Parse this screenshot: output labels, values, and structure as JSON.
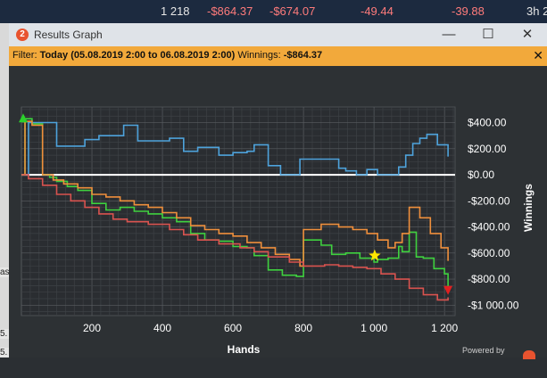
{
  "topbar": {
    "hands": "1 218",
    "winnings": "-$864.37",
    "allin_adj": "-$674.07",
    "bb100": "-49.44",
    "other": "-39.88",
    "time": "3h 2"
  },
  "left_fragments": [
    "as",
    "5.",
    "5."
  ],
  "window": {
    "title": "Results Graph",
    "icon_label": "2",
    "minimize_label": "—",
    "maximize_label": "☐",
    "close_label": "✕"
  },
  "filter": {
    "label": "Filter:",
    "value": "Today (05.08.2019 2:00 to 06.08.2019 2:00)",
    "winnings_label": "Winnings:",
    "winnings_value": "-$864.37",
    "close_label": "✕"
  },
  "footer": {
    "powered_by": "Powered by"
  },
  "chart_data": {
    "type": "line",
    "xlabel": "Hands",
    "ylabel": "Winnings",
    "xlim": [
      0,
      1230
    ],
    "ylim": [
      -1080,
      520
    ],
    "xticks": [
      200,
      400,
      600,
      800,
      1000,
      1200
    ],
    "xtick_labels": [
      "200",
      "400",
      "600",
      "800",
      "1 000",
      "1 200"
    ],
    "yticks": [
      400,
      200,
      0,
      -200,
      -400,
      -600,
      -800,
      -1000
    ],
    "ytick_labels": [
      "$400.00",
      "$200.00",
      "$0.00",
      "-$200.00",
      "-$400.00",
      "-$600.00",
      "-$800.00",
      "-$1 000.00"
    ],
    "grid": true,
    "colors": {
      "blue": "#4ea3dc",
      "green": "#3fd13f",
      "orange": "#ef8f3c",
      "red": "#d9534f",
      "zero": "#ffffff"
    },
    "series": [
      {
        "color_key": "blue",
        "x": [
          0,
          20,
          60,
          100,
          150,
          180,
          220,
          290,
          330,
          420,
          460,
          500,
          560,
          600,
          640,
          660,
          700,
          735,
          760,
          790,
          850,
          900,
          920,
          950,
          980,
          1010,
          1070,
          1090,
          1110,
          1130,
          1150,
          1180,
          1210
        ],
        "y": [
          0,
          400,
          400,
          220,
          220,
          270,
          300,
          380,
          260,
          280,
          180,
          210,
          150,
          170,
          180,
          230,
          70,
          0,
          0,
          120,
          120,
          50,
          30,
          0,
          40,
          0,
          60,
          150,
          240,
          280,
          310,
          230,
          140
        ]
      },
      {
        "color_key": "green",
        "x": [
          0,
          10,
          30,
          60,
          80,
          100,
          130,
          160,
          200,
          240,
          280,
          320,
          360,
          400,
          440,
          480,
          520,
          560,
          600,
          640,
          660,
          700,
          740,
          780,
          800,
          850,
          880,
          920,
          960,
          1000,
          1010,
          1040,
          1070,
          1080,
          1100,
          1120,
          1140,
          1170,
          1200,
          1210
        ],
        "y": [
          0,
          430,
          390,
          0,
          -20,
          -50,
          -90,
          -120,
          -220,
          -270,
          -250,
          -280,
          -300,
          -330,
          -360,
          -450,
          -500,
          -510,
          -550,
          -560,
          -620,
          -730,
          -770,
          -780,
          -500,
          -540,
          -610,
          -600,
          -640,
          -670,
          -650,
          -640,
          -550,
          -590,
          -440,
          -630,
          -640,
          -720,
          -760,
          -870
        ]
      },
      {
        "color_key": "orange",
        "x": [
          0,
          10,
          30,
          60,
          90,
          120,
          160,
          200,
          240,
          280,
          320,
          360,
          400,
          440,
          480,
          520,
          560,
          600,
          640,
          680,
          720,
          760,
          790,
          800,
          850,
          900,
          940,
          980,
          1010,
          1040,
          1060,
          1080,
          1100,
          1130,
          1160,
          1190,
          1210
        ],
        "y": [
          0,
          410,
          380,
          0,
          -40,
          -70,
          -100,
          -150,
          -170,
          -200,
          -230,
          -250,
          -290,
          -330,
          -390,
          -420,
          -450,
          -470,
          -520,
          -560,
          -610,
          -650,
          -700,
          -420,
          -380,
          -400,
          -420,
          -450,
          -500,
          -560,
          -520,
          -450,
          -250,
          -330,
          -450,
          -560,
          -660
        ]
      },
      {
        "color_key": "red",
        "x": [
          0,
          20,
          60,
          100,
          140,
          180,
          220,
          260,
          300,
          360,
          420,
          460,
          500,
          560,
          620,
          660,
          700,
          760,
          800,
          860,
          900,
          940,
          980,
          1020,
          1060,
          1100,
          1140,
          1180,
          1210
        ],
        "y": [
          0,
          -30,
          -80,
          -150,
          -200,
          -250,
          -300,
          -340,
          -360,
          -380,
          -420,
          -460,
          -500,
          -530,
          -560,
          -590,
          -630,
          -670,
          -700,
          -690,
          -700,
          -710,
          -720,
          -760,
          -800,
          -870,
          -920,
          -960,
          -940
        ]
      }
    ],
    "markers": [
      {
        "name": "start-marker",
        "x": 5,
        "y": 430,
        "color": "#2bd12b",
        "shape": "triangle-up"
      },
      {
        "name": "star-marker",
        "x": 1002,
        "y": -620,
        "color": "#ffe800",
        "shape": "star"
      },
      {
        "name": "end-marker",
        "x": 1210,
        "y": -880,
        "color": "#e02020",
        "shape": "triangle-down"
      }
    ]
  }
}
